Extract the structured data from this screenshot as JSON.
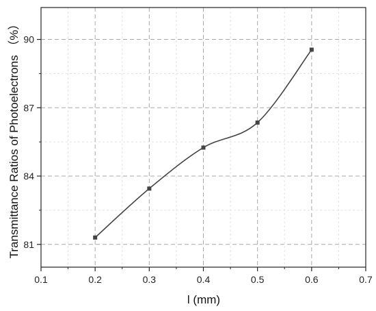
{
  "chart_data": {
    "type": "line",
    "title": "",
    "xlabel": "l (mm)",
    "ylabel": "Transmittance Ratios of Photoelectrons （%）",
    "xlim": [
      0.1,
      0.7
    ],
    "ylim": [
      80.0,
      91.4
    ],
    "x_ticks": [
      "0.1",
      "0.2",
      "0.3",
      "0.4",
      "0.5",
      "0.6",
      "0.7"
    ],
    "y_ticks": [
      "81",
      "84",
      "87",
      "90"
    ],
    "grid": true,
    "smooth": true,
    "series": [
      {
        "x": [
          0.2,
          0.3,
          0.4,
          0.5,
          0.6
        ],
        "values": [
          81.3,
          83.45,
          85.25,
          86.35,
          89.55
        ],
        "color": "#444444",
        "marker": "square"
      }
    ]
  }
}
